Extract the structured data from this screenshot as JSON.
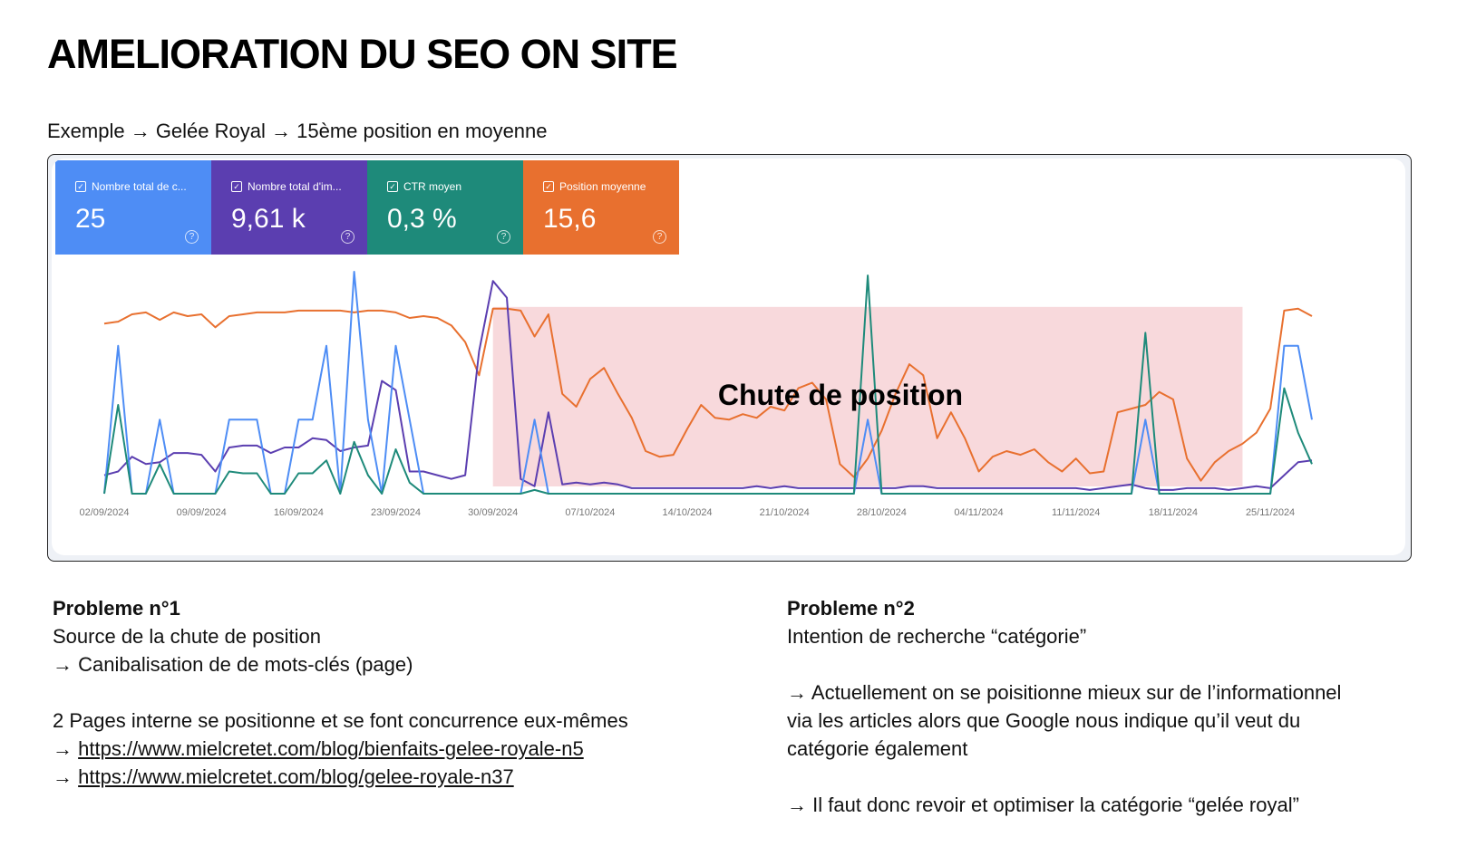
{
  "page": {
    "title": "AMELIORATION DU SEO ON SITE",
    "subtitle": "Exemple → Gelée Royal → 15ème position en moyenne"
  },
  "metrics": [
    {
      "label": "Nombre total de c...",
      "value": "25",
      "color": "#4e8df5",
      "checkbox_icon": "checkbox-checked-icon",
      "help_icon": "help-icon"
    },
    {
      "label": "Nombre total d'im...",
      "value": "9,61 k",
      "color": "#5b3eb0",
      "checkbox_icon": "checkbox-checked-icon",
      "help_icon": "help-icon"
    },
    {
      "label": "CTR moyen",
      "value": "0,3 %",
      "color": "#1e8a7a",
      "checkbox_icon": "checkbox-checked-icon",
      "help_icon": "help-icon"
    },
    {
      "label": "Position moyenne",
      "value": "15,6",
      "color": "#e8702f",
      "checkbox_icon": "checkbox-checked-icon",
      "help_icon": "help-icon"
    }
  ],
  "chart_data": {
    "type": "line",
    "x_tick_labels": [
      "02/09/2024",
      "09/09/2024",
      "16/09/2024",
      "23/09/2024",
      "30/09/2024",
      "07/10/2024",
      "14/10/2024",
      "21/10/2024",
      "28/10/2024",
      "04/11/2024",
      "11/11/2024",
      "18/11/2024",
      "25/11/2024"
    ],
    "grid": false,
    "legend": "none",
    "annotation": {
      "label": "Chute de position",
      "start_index": 28,
      "end_index": 82,
      "color": "#f8d9dc"
    },
    "series": [
      {
        "color": "#e8702f",
        "values": [
          92,
          93,
          97,
          98,
          94,
          98,
          96,
          97,
          90,
          96,
          97,
          98,
          98,
          98,
          99,
          99,
          99,
          99,
          98,
          99,
          99,
          98,
          95,
          96,
          95,
          91,
          82,
          64,
          100,
          100,
          99,
          85,
          97,
          54,
          47,
          62,
          68,
          54,
          41,
          23,
          20,
          21,
          35,
          48,
          41,
          40,
          43,
          41,
          47,
          45,
          57,
          60,
          51,
          16,
          9,
          19,
          34,
          54,
          70,
          64,
          30,
          44,
          30,
          12,
          20,
          23,
          21,
          24,
          17,
          12,
          19,
          11,
          12,
          44,
          46,
          48,
          55,
          51,
          19,
          7,
          17,
          23,
          27,
          33,
          46,
          99,
          100,
          96
        ]
      },
      {
        "color": "#5b3eb0",
        "values": [
          10,
          12,
          20,
          16,
          17,
          22,
          22,
          21,
          12,
          25,
          26,
          26,
          22,
          25,
          25,
          30,
          29,
          23,
          25,
          26,
          61,
          56,
          12,
          12,
          10,
          8,
          10,
          77,
          115,
          106,
          8,
          4,
          44,
          5,
          6,
          5,
          6,
          5,
          3,
          3,
          3,
          3,
          3,
          3,
          3,
          3,
          3,
          4,
          3,
          4,
          3,
          3,
          3,
          3,
          3,
          3,
          3,
          3,
          4,
          4,
          3,
          3,
          3,
          3,
          3,
          3,
          3,
          3,
          3,
          3,
          3,
          2,
          3,
          4,
          5,
          3,
          2,
          2,
          3,
          3,
          3,
          2,
          3,
          4,
          3,
          10,
          17,
          18
        ]
      },
      {
        "color": "#4e8df5",
        "values": [
          0,
          80,
          0,
          0,
          40,
          0,
          0,
          0,
          0,
          40,
          40,
          40,
          0,
          0,
          40,
          40,
          80,
          0,
          120,
          40,
          0,
          80,
          40,
          0,
          0,
          0,
          0,
          0,
          0,
          0,
          0,
          40,
          0,
          0,
          0,
          0,
          0,
          0,
          0,
          0,
          0,
          0,
          0,
          0,
          0,
          0,
          0,
          0,
          0,
          0,
          0,
          0,
          0,
          0,
          0,
          40,
          0,
          0,
          0,
          0,
          0,
          0,
          0,
          0,
          0,
          0,
          0,
          0,
          0,
          0,
          0,
          0,
          0,
          0,
          0,
          40,
          0,
          0,
          0,
          0,
          0,
          0,
          0,
          0,
          0,
          80,
          80,
          40
        ]
      },
      {
        "color": "#1e8a7a",
        "values": [
          0,
          48,
          0,
          0,
          16,
          0,
          0,
          0,
          0,
          12,
          11,
          11,
          0,
          0,
          11,
          11,
          18,
          0,
          28,
          10,
          0,
          24,
          6,
          0,
          0,
          0,
          0,
          0,
          0,
          0,
          0,
          2,
          0,
          0,
          0,
          0,
          0,
          0,
          0,
          0,
          0,
          0,
          0,
          0,
          0,
          0,
          0,
          0,
          0,
          0,
          0,
          0,
          0,
          0,
          0,
          118,
          0,
          0,
          0,
          0,
          0,
          0,
          0,
          0,
          0,
          0,
          0,
          0,
          0,
          0,
          0,
          0,
          0,
          0,
          0,
          87,
          0,
          0,
          0,
          0,
          0,
          0,
          0,
          0,
          0,
          57,
          33,
          16
        ]
      }
    ]
  },
  "problem1": {
    "heading": "Probleme n°1",
    "line1": "Source de la chute de position",
    "line2": "→ Canibalisation de de mots-clés (page)",
    "line3": "2 Pages interne se positionne et se font concurrence eux-mêmes",
    "arrow": "→",
    "link1": "https://www.mielcretet.com/blog/bienfaits-gelee-royale-n5",
    "link2": "https://www.mielcretet.com/blog/gelee-royale-n37"
  },
  "problem2": {
    "heading": "Probleme n°2",
    "line1": "Intention de recherche “catégorie”",
    "para1_line1": "→ Actuellement on se poisitionne mieux sur de l’informationnel",
    "para1_line2": "via les articles alors que Google nous indique qu’il veut du",
    "para1_line3": "catégorie également",
    "para2": "→ Il faut donc revoir et optimiser la catégorie “gelée royal”"
  }
}
